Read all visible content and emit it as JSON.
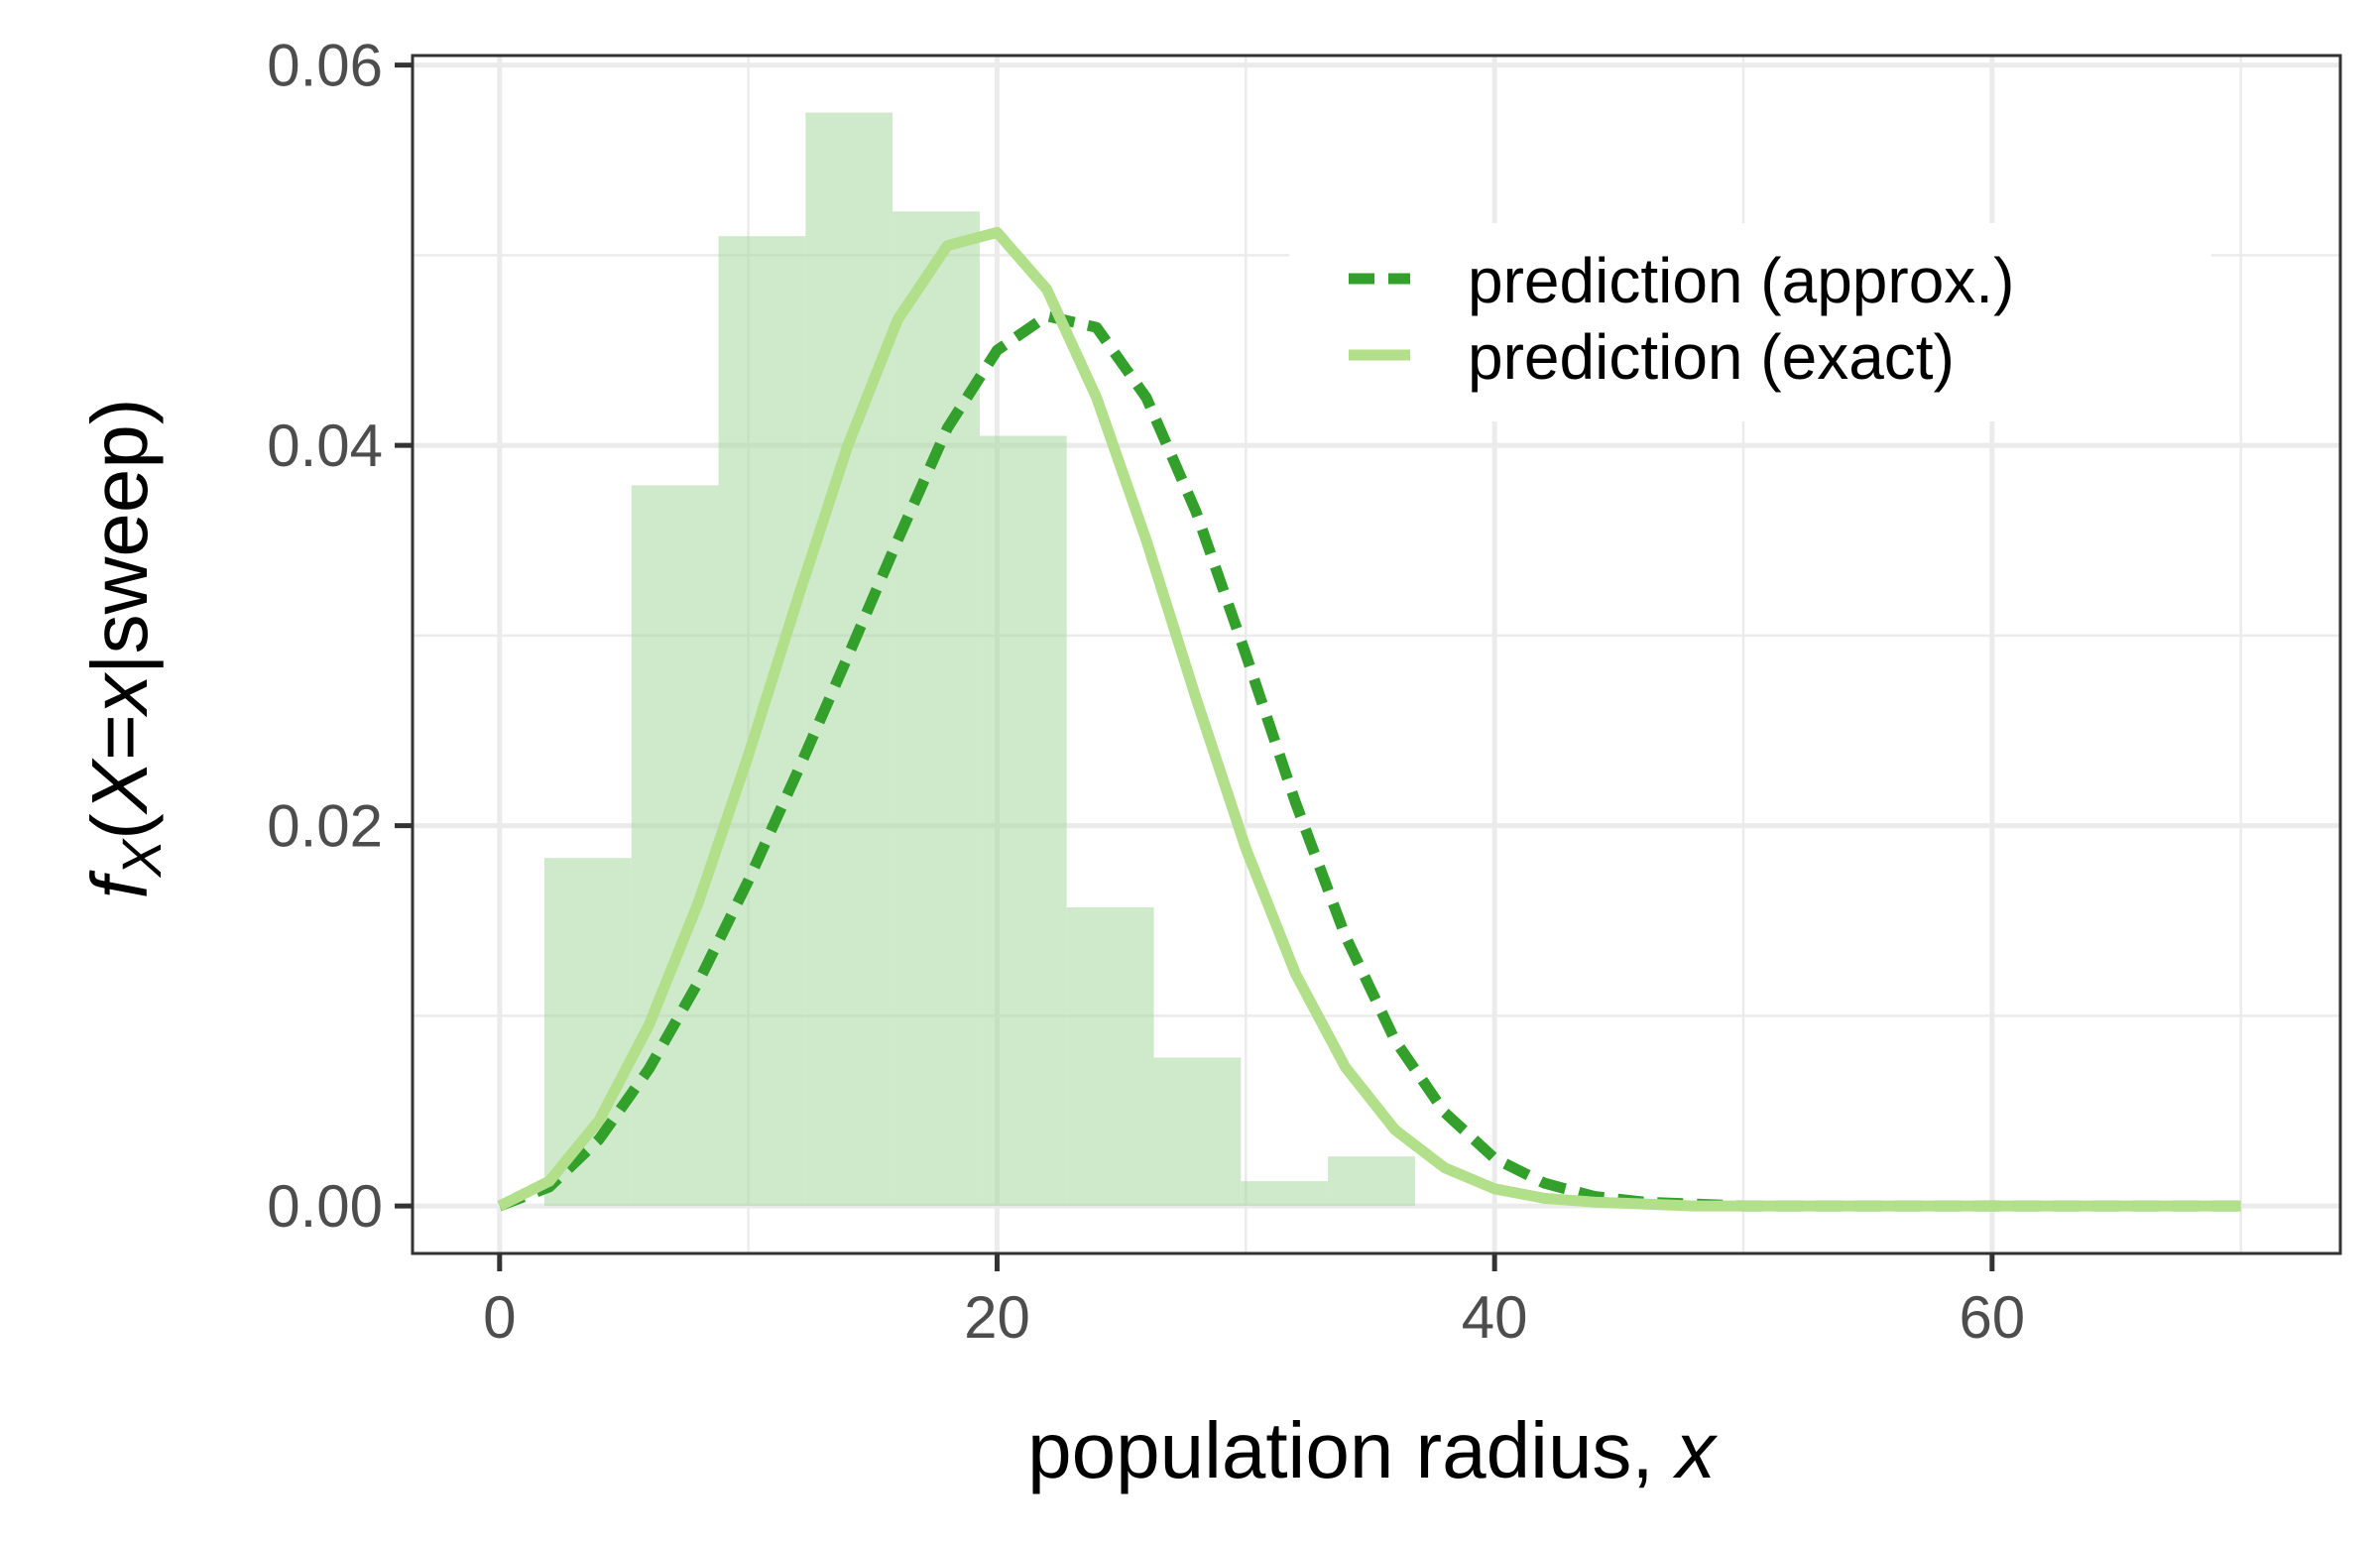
{
  "chart_data": {
    "type": "histogram+line",
    "xlabel": {
      "main": "population radius, ",
      "var": "x"
    },
    "ylabel": {
      "f": "f",
      "sub": "X",
      "rest_open": "(",
      "X": "X",
      "eq": "=",
      "x": "x",
      "rest": "|sweep)"
    },
    "xlim": [
      -3.5,
      74
    ],
    "ylim": [
      -0.0025,
      0.0605
    ],
    "xticks": [
      0,
      20,
      40,
      60
    ],
    "xtick_labels": [
      "0",
      "20",
      "40",
      "60"
    ],
    "yticks": [
      0.0,
      0.02,
      0.04,
      0.06
    ],
    "ytick_labels": [
      "0.00",
      "0.02",
      "0.04",
      "0.06"
    ],
    "x_minor_grid": [
      10,
      30,
      50,
      70
    ],
    "y_minor_grid": [
      0.01,
      0.03,
      0.05
    ],
    "grid": true,
    "legend_position": "top-right",
    "histogram": {
      "color": "#a6d89e",
      "opacity": 0.55,
      "bins": [
        {
          "x0": 1.8,
          "x1": 5.3,
          "y": 0.0183
        },
        {
          "x0": 5.3,
          "x1": 8.8,
          "y": 0.0379
        },
        {
          "x0": 8.8,
          "x1": 12.3,
          "y": 0.051
        },
        {
          "x0": 12.3,
          "x1": 15.8,
          "y": 0.0575
        },
        {
          "x0": 15.8,
          "x1": 19.3,
          "y": 0.0523
        },
        {
          "x0": 19.3,
          "x1": 22.8,
          "y": 0.0405
        },
        {
          "x0": 22.8,
          "x1": 26.3,
          "y": 0.0157
        },
        {
          "x0": 26.3,
          "x1": 29.8,
          "y": 0.0078
        },
        {
          "x0": 29.8,
          "x1": 33.3,
          "y": 0.0013
        },
        {
          "x0": 33.3,
          "x1": 36.8,
          "y": 0.0026
        }
      ]
    },
    "series": [
      {
        "name": "prediction (approx.)",
        "color": "#33a02c",
        "style": "dashed",
        "x": [
          0,
          2,
          4,
          6,
          8,
          10,
          12,
          14,
          16,
          18,
          20,
          22,
          24,
          26,
          28,
          30,
          32,
          34,
          36,
          38,
          40,
          42,
          44,
          46,
          48,
          50,
          52,
          55,
          60,
          65,
          70
        ],
        "y": [
          0.0,
          0.001,
          0.0035,
          0.0072,
          0.0118,
          0.0171,
          0.0229,
          0.0289,
          0.035,
          0.0409,
          0.045,
          0.0468,
          0.0462,
          0.0425,
          0.0365,
          0.029,
          0.0212,
          0.0142,
          0.0087,
          0.0049,
          0.0025,
          0.0012,
          0.0005,
          0.0002,
          0.0001,
          0.0,
          0.0,
          0.0,
          0.0,
          0.0,
          0.0
        ]
      },
      {
        "name": "prediction (exact)",
        "color": "#b2df8a",
        "style": "solid",
        "x": [
          0,
          2,
          4,
          6,
          8,
          10,
          12,
          14,
          16,
          18,
          20,
          22,
          24,
          26,
          28,
          30,
          32,
          34,
          36,
          38,
          40,
          42,
          44,
          46,
          48,
          50,
          52,
          55,
          60,
          65,
          70
        ],
        "y": [
          0.0,
          0.0013,
          0.0045,
          0.0095,
          0.016,
          0.0237,
          0.032,
          0.04,
          0.0466,
          0.0505,
          0.0512,
          0.0482,
          0.0425,
          0.035,
          0.0267,
          0.0188,
          0.0122,
          0.0073,
          0.004,
          0.002,
          0.0009,
          0.0004,
          0.0002,
          0.0001,
          0.0,
          0.0,
          0.0,
          0.0,
          0.0,
          0.0,
          0.0
        ]
      }
    ]
  }
}
